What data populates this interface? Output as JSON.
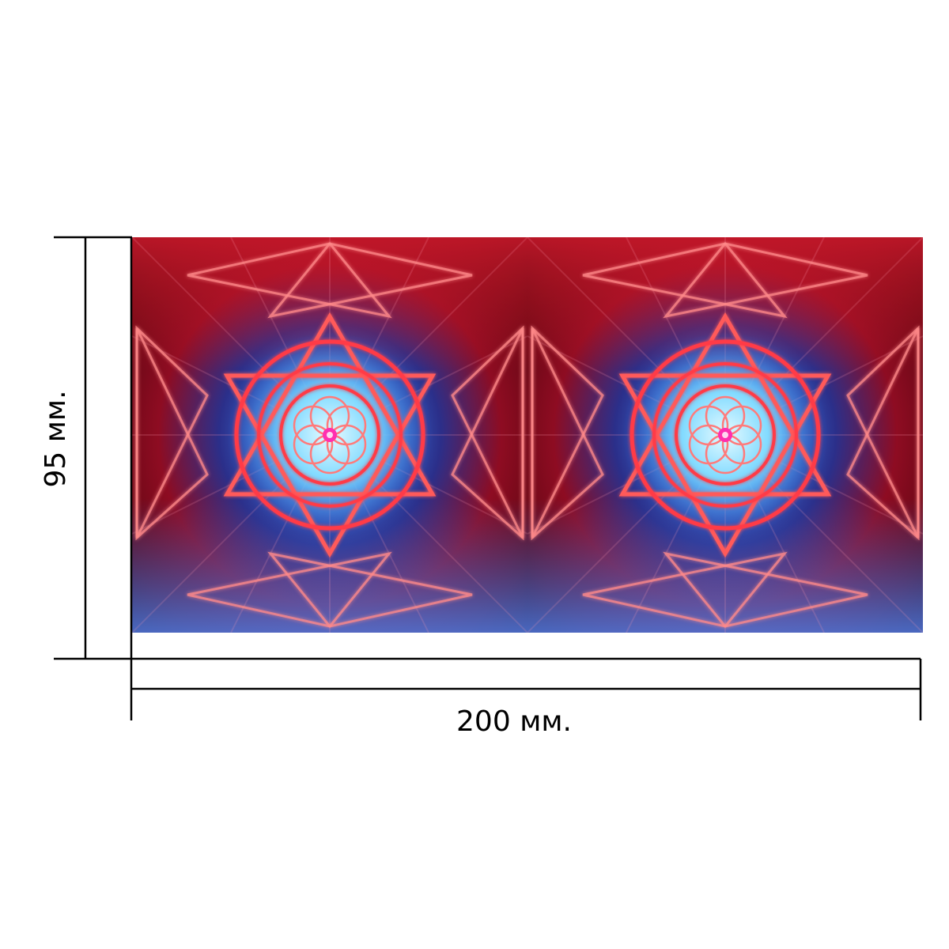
{
  "dimensions": {
    "height_label": "95 мм.",
    "width_label": "200 мм."
  },
  "print_panel": {
    "tile_count": 2,
    "palette": {
      "deep_red": "#5a0610",
      "red": "#c8182a",
      "blue": "#3a5cc8",
      "light_blue": "#7ad8ff",
      "neon_line": "#ff6b6b",
      "magenta": "#ff2fb0"
    }
  }
}
